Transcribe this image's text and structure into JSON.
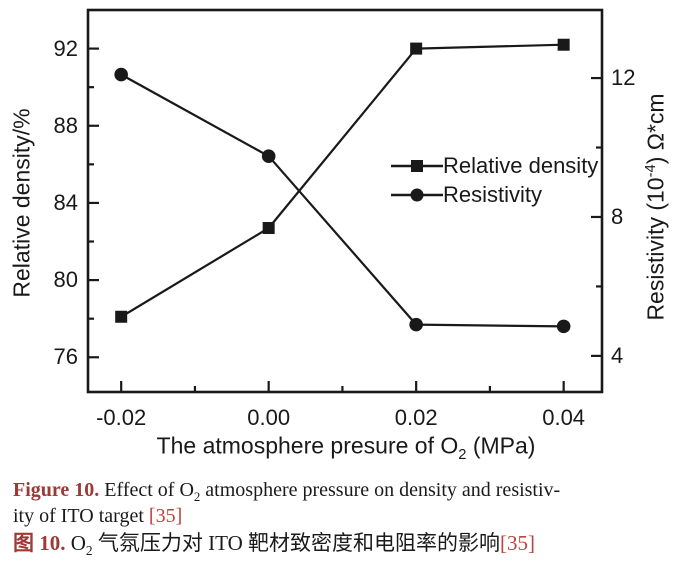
{
  "figure": {
    "background": "#ffffff",
    "ink": "#191919"
  },
  "chart_data": {
    "type": "line",
    "x": [
      -0.02,
      0.0,
      0.02,
      0.04
    ],
    "x_tick_labels": [
      "-0.02",
      "0.00",
      "0.02",
      "0.04"
    ],
    "x_minor_ticks": [
      -0.01,
      0.01,
      0.03
    ],
    "xlim": [
      -0.0245,
      0.0452
    ],
    "xlabel": "The atmosphere presure of O2 (MPa)",
    "left_axis": {
      "label": "Relative density/%",
      "lim": [
        74.2,
        94.0
      ],
      "major_ticks": [
        92,
        88,
        84,
        80,
        76
      ],
      "major_tick_labels": [
        "92",
        "88",
        "84",
        "80",
        "76"
      ],
      "minor_ticks": [
        90,
        86,
        82,
        78
      ]
    },
    "right_axis": {
      "label": "Resistivity (10^-4) Ω*cm",
      "lim": [
        2.96,
        13.96
      ],
      "major_ticks": [
        12,
        8,
        4
      ],
      "major_tick_labels": [
        "12",
        "8",
        "4"
      ],
      "minor_ticks": [
        10,
        6
      ]
    },
    "series": [
      {
        "name": "Relative density",
        "axis": "left",
        "marker": "square",
        "values": [
          78.1,
          82.7,
          92.0,
          92.2
        ]
      },
      {
        "name": "Resistivity",
        "axis": "right",
        "marker": "circle",
        "values": [
          12.1,
          9.75,
          4.9,
          4.85
        ]
      }
    ],
    "legend": {
      "position": "middle-right",
      "entries": [
        "Relative density",
        "Resistivity"
      ]
    },
    "grid": false
  },
  "axis_label_segments": {
    "x": [
      {
        "t": "The atmosphere presure of O"
      },
      {
        "t": "2",
        "sub": true
      },
      {
        "t": " (MPa)"
      }
    ],
    "left": [
      {
        "t": "Relative density/%"
      }
    ],
    "right": [
      {
        "t": "Resistivity (10"
      },
      {
        "t": "-4",
        "sup": true
      },
      {
        "t": ") Ω*cm"
      }
    ]
  },
  "caption": {
    "accent_color": "#9c3a36",
    "ref_color": "#c0423d",
    "english_lines": [
      [
        {
          "t": "Figure 10.",
          "bold": true,
          "accent": true
        },
        {
          "t": " Effect of O"
        },
        {
          "t": "2",
          "sub": true
        },
        {
          "t": " atmosphere pressure on density and resistiv-"
        }
      ],
      [
        {
          "t": "ity of ITO target "
        },
        {
          "t": "[35]",
          "ref": true
        }
      ]
    ],
    "chinese_lines": [
      [
        {
          "t": "图 10.",
          "bold": true,
          "accent": true
        },
        {
          "t": " O"
        },
        {
          "t": "2",
          "sub": true
        },
        {
          "t": " 气氛压力对 ITO 靶材致密度和电阻率的影响"
        },
        {
          "t": "[35]",
          "ref": true
        }
      ]
    ]
  }
}
